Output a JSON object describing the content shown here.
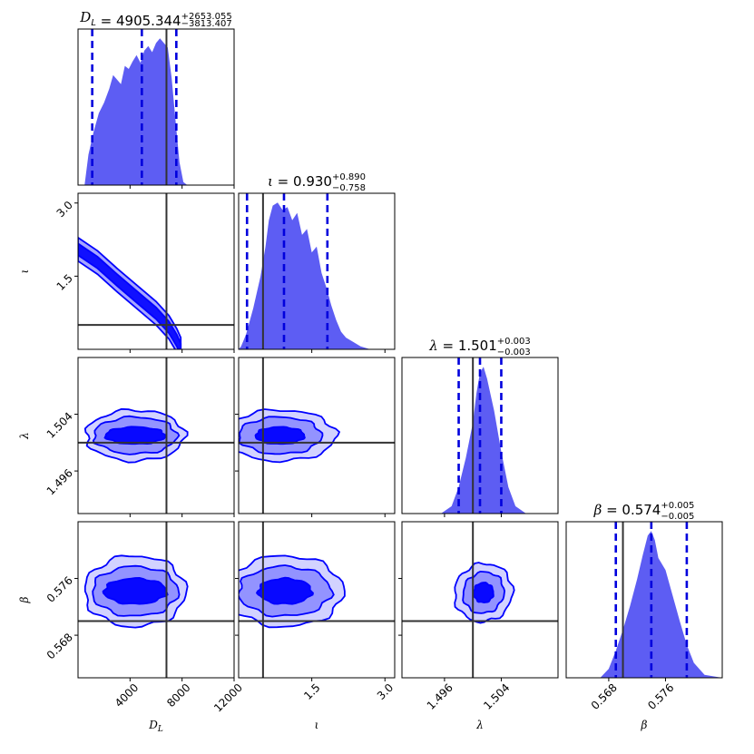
{
  "chart_data": {
    "type": "corner",
    "parameters": [
      {
        "symbol": "D_L",
        "axis_label": "D",
        "axis_label_sub": "L",
        "range": [
          0,
          12000
        ],
        "ticks": [
          4000,
          8000,
          12000
        ],
        "tick_labels": [
          "4000",
          "8000",
          "12000"
        ],
        "median": 4905.344,
        "err_plus": 2653.055,
        "err_minus": 3813.407,
        "truth": 6800,
        "title_main": "D",
        "title_sub": "L",
        "title_value": " = 4905.344",
        "title_plus": "+2653.055",
        "title_minus": "−3813.407",
        "density_x": [
          0,
          500,
          800,
          1200,
          1600,
          2000,
          2400,
          2700,
          3000,
          3300,
          3600,
          3900,
          4200,
          4500,
          4800,
          5100,
          5400,
          5700,
          6000,
          6300,
          6600,
          6900,
          7200,
          7500,
          7800,
          8100,
          8400,
          12000
        ],
        "density_y": [
          0,
          0.0,
          0.2,
          0.35,
          0.47,
          0.54,
          0.63,
          0.72,
          0.69,
          0.66,
          0.78,
          0.76,
          0.81,
          0.85,
          0.8,
          0.88,
          0.91,
          0.87,
          0.93,
          0.96,
          0.93,
          0.9,
          0.7,
          0.42,
          0.15,
          0.02,
          0,
          0
        ]
      },
      {
        "symbol": "ι",
        "axis_label": "ι",
        "axis_label_sub": "",
        "range": [
          0,
          3.2
        ],
        "ticks": [
          1.5,
          3.0
        ],
        "tick_labels": [
          "1.5",
          "3.0"
        ],
        "median": 0.93,
        "err_plus": 0.89,
        "err_minus": 0.758,
        "truth": 0.5,
        "title_main": "ι",
        "title_sub": "",
        "title_value": " = 0.930",
        "title_plus": "+0.890",
        "title_minus": "−0.758",
        "density_x": [
          0,
          0.05,
          0.15,
          0.3,
          0.45,
          0.55,
          0.62,
          0.7,
          0.8,
          0.9,
          1.0,
          1.1,
          1.2,
          1.3,
          1.4,
          1.5,
          1.6,
          1.7,
          1.8,
          1.9,
          2.0,
          2.1,
          2.2,
          2.35,
          2.5,
          2.7,
          3.2
        ],
        "density_y": [
          0,
          0.02,
          0.1,
          0.28,
          0.5,
          0.7,
          0.88,
          0.98,
          1.0,
          0.95,
          0.97,
          0.88,
          0.93,
          0.78,
          0.82,
          0.66,
          0.7,
          0.52,
          0.42,
          0.3,
          0.2,
          0.12,
          0.08,
          0.05,
          0.02,
          0,
          0
        ]
      },
      {
        "symbol": "λ",
        "axis_label": "λ",
        "axis_label_sub": "",
        "range": [
          1.49,
          1.512
        ],
        "ticks": [
          1.496,
          1.504
        ],
        "tick_labels": [
          "1.496",
          "1.504"
        ],
        "median": 1.501,
        "err_plus": 0.003,
        "err_minus": 0.003,
        "truth": 1.5,
        "title_main": "λ",
        "title_sub": "",
        "title_value": " = 1.501",
        "title_plus": "+0.003",
        "title_minus": "−0.003",
        "density_x": [
          1.49,
          1.4955,
          1.497,
          1.498,
          1.499,
          1.5,
          1.5005,
          1.501,
          1.5015,
          1.502,
          1.503,
          1.504,
          1.505,
          1.506,
          1.5075,
          1.512
        ],
        "density_y": [
          0,
          0,
          0.05,
          0.18,
          0.38,
          0.62,
          0.82,
          0.96,
          1.0,
          0.92,
          0.7,
          0.42,
          0.18,
          0.05,
          0,
          0
        ]
      },
      {
        "symbol": "β",
        "axis_label": "β",
        "axis_label_sub": "",
        "range": [
          0.562,
          0.584
        ],
        "ticks": [
          0.568,
          0.576
        ],
        "tick_labels": [
          "0.568",
          "0.576"
        ],
        "median": 0.574,
        "err_plus": 0.005,
        "err_minus": 0.005,
        "truth": 0.57,
        "title_main": "β",
        "title_sub": "",
        "title_value": " = 0.574",
        "title_plus": "+0.005",
        "title_minus": "−0.005",
        "density_x": [
          0.562,
          0.5668,
          0.568,
          0.569,
          0.57,
          0.571,
          0.572,
          0.5728,
          0.5735,
          0.574,
          0.5745,
          0.575,
          0.576,
          0.577,
          0.578,
          0.579,
          0.58,
          0.5815,
          0.584
        ],
        "density_y": [
          0,
          0,
          0.06,
          0.18,
          0.32,
          0.48,
          0.66,
          0.82,
          0.95,
          0.98,
          0.92,
          0.8,
          0.72,
          0.55,
          0.38,
          0.22,
          0.1,
          0.02,
          0
        ]
      }
    ],
    "contours_2d": [
      {
        "x": 0,
        "y": 1,
        "kind": "band",
        "line": [
          [
            0,
            2.05
          ],
          [
            1500,
            1.78
          ],
          [
            3000,
            1.42
          ],
          [
            4500,
            1.08
          ],
          [
            6000,
            0.74
          ],
          [
            7000,
            0.45
          ],
          [
            7600,
            0.18
          ],
          [
            7900,
            0.0
          ]
        ],
        "widths": [
          0.12,
          0.24
        ]
      },
      {
        "x": 0,
        "y": 2,
        "kind": "ellipse",
        "center": [
          4400,
          1.501
        ],
        "rx": [
          2300,
          3200,
          3800
        ],
        "ry": [
          0.0012,
          0.0026,
          0.0036
        ],
        "angle": 0
      },
      {
        "x": 1,
        "y": 2,
        "kind": "ellipse",
        "center": [
          0.85,
          1.501
        ],
        "rx": [
          0.5,
          0.85,
          1.15
        ],
        "ry": [
          0.0012,
          0.0026,
          0.0036
        ],
        "angle": 0
      },
      {
        "x": 0,
        "y": 3,
        "kind": "ellipse",
        "center": [
          4400,
          0.5742
        ],
        "rx": [
          2400,
          3300,
          3900
        ],
        "ry": [
          0.0018,
          0.0035,
          0.005
        ],
        "angle": 0
      },
      {
        "x": 1,
        "y": 3,
        "kind": "ellipse",
        "center": [
          0.95,
          0.5742
        ],
        "rx": [
          0.55,
          0.95,
          1.2
        ],
        "ry": [
          0.0018,
          0.0035,
          0.005
        ],
        "angle": 0
      },
      {
        "x": 2,
        "y": 3,
        "kind": "ellipse",
        "center": [
          1.5015,
          0.574
        ],
        "rx": [
          0.0014,
          0.003,
          0.0042
        ],
        "ry": [
          0.0014,
          0.0028,
          0.004
        ],
        "angle": -48
      }
    ],
    "colors": {
      "posterior": "#0000ff",
      "fill": "#2f2ff0",
      "truth": "#333333",
      "quantile": "#0000dd"
    },
    "xlabel": "",
    "ylabel": ""
  }
}
